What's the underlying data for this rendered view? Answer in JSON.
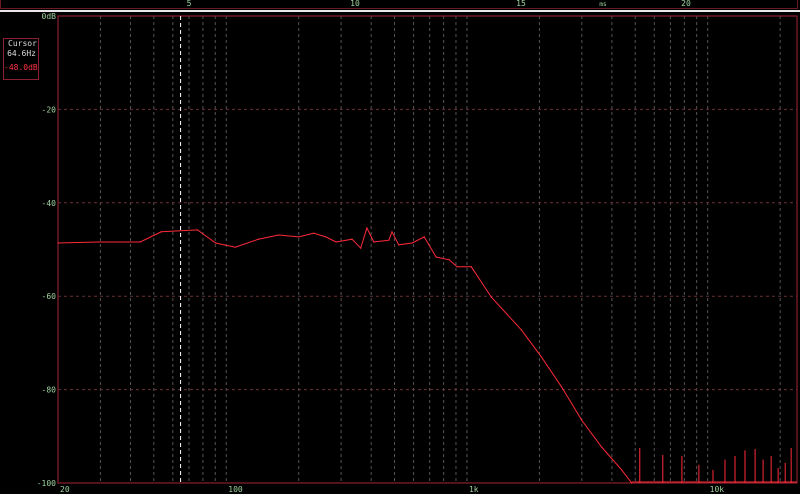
{
  "cursor": {
    "title": "Cursor",
    "frequency": "64.6Hz",
    "level": "-48.0dB",
    "frequency_value_hz": 64.6
  },
  "colors": {
    "background": "#000000",
    "trace": "#ff2a3a",
    "frame": "#8a2030",
    "grid": "#555555",
    "labels": "#9fd49f",
    "cursor_line": "#ffffff"
  },
  "top_axis": {
    "unit": "ms",
    "ticks": [
      {
        "value": 5,
        "label": "5"
      },
      {
        "value": 10,
        "label": "10"
      },
      {
        "value": 15,
        "label": "15"
      },
      {
        "value": 20,
        "label": "20"
      }
    ]
  },
  "chart_data": {
    "type": "line",
    "x_scale": "log",
    "xlim": [
      20,
      23500
    ],
    "ylim": [
      -100,
      0
    ],
    "grid": true,
    "x_ticks": [
      {
        "value": 20,
        "label": "20"
      },
      {
        "value": 100,
        "label": "100"
      },
      {
        "value": 1000,
        "label": "1k"
      },
      {
        "value": 10000,
        "label": "10k"
      }
    ],
    "y_ticks": [
      {
        "value": 0,
        "label": "0dB"
      },
      {
        "value": -20,
        "label": "-20"
      },
      {
        "value": -40,
        "label": "-40"
      },
      {
        "value": -60,
        "label": "-60"
      },
      {
        "value": -80,
        "label": "-80"
      },
      {
        "value": -100,
        "label": "-100"
      }
    ],
    "series": [
      {
        "points": [
          [
            20,
            -48.6
          ],
          [
            29.4,
            -48.4
          ],
          [
            43.9,
            -48.4
          ],
          [
            53.7,
            -46.2
          ],
          [
            75.9,
            -45.8
          ],
          [
            90.4,
            -48.6
          ],
          [
            109,
            -49.5
          ],
          [
            136,
            -47.8
          ],
          [
            165,
            -46.9
          ],
          [
            200,
            -47.3
          ],
          [
            231,
            -46.5
          ],
          [
            259,
            -47.3
          ],
          [
            286,
            -48.4
          ],
          [
            333,
            -47.8
          ],
          [
            362,
            -49.7
          ],
          [
            384,
            -45.4
          ],
          [
            410,
            -48.4
          ],
          [
            474,
            -48
          ],
          [
            488,
            -46.2
          ],
          [
            521,
            -49
          ],
          [
            592,
            -48.6
          ],
          [
            664,
            -47.3
          ],
          [
            744,
            -51.6
          ],
          [
            844,
            -52.2
          ],
          [
            910,
            -53.7
          ],
          [
            1042,
            -53.7
          ],
          [
            1262,
            -60.2
          ],
          [
            1682,
            -67.2
          ],
          [
            2038,
            -73
          ],
          [
            2470,
            -79.4
          ],
          [
            2993,
            -86.5
          ],
          [
            3626,
            -92.3
          ],
          [
            4392,
            -97.2
          ],
          [
            4832,
            -100
          ]
        ]
      }
    ],
    "spikes": [
      [
        5222,
        -92.5
      ],
      [
        6510,
        -94
      ],
      [
        7816,
        -94.2
      ],
      [
        9194,
        -96.1
      ],
      [
        10520,
        -97.2
      ],
      [
        11800,
        -95
      ],
      [
        12990,
        -94.2
      ],
      [
        14290,
        -93
      ],
      [
        15740,
        -92.7
      ],
      [
        16990,
        -95
      ],
      [
        18350,
        -94.2
      ],
      [
        19620,
        -96.8
      ],
      [
        20990,
        -95.7
      ],
      [
        22220,
        -92.5
      ]
    ]
  }
}
